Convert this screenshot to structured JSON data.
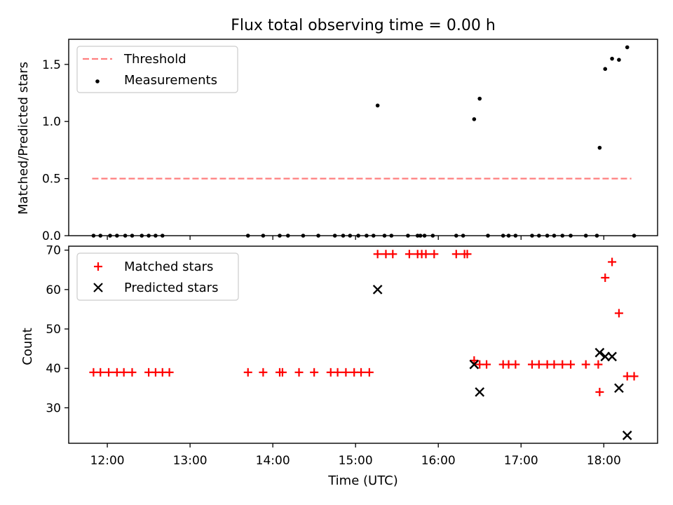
{
  "figure": {
    "title": "Flux total observing time = 0.00 h",
    "xlabel": "Time (UTC)",
    "x_ticks": [
      "12:00",
      "13:00",
      "14:00",
      "15:00",
      "16:00",
      "17:00",
      "18:00"
    ],
    "colors": {
      "threshold": "#ff7f7f",
      "measurements": "#000000",
      "matched": "#ff0000",
      "predicted": "#000000"
    }
  },
  "chart_data": [
    {
      "type": "scatter",
      "ylabel": "Matched/Predicted stars",
      "ylim": [
        0,
        1.72
      ],
      "xlim": [
        "11:32",
        "18:39"
      ],
      "y_ticks": [
        "0.0",
        "0.5",
        "1.0",
        "1.5"
      ],
      "grid": false,
      "legend_position": "top-left",
      "threshold": {
        "name": "Threshold",
        "y": 0.5,
        "x_range": [
          "11:49",
          "18:20"
        ],
        "style": "dashed"
      },
      "series": [
        {
          "name": "Measurements",
          "points": [
            [
              "11:50",
              0
            ],
            [
              "11:55",
              0
            ],
            [
              "12:02",
              0
            ],
            [
              "12:07",
              0
            ],
            [
              "12:13",
              0
            ],
            [
              "12:18",
              0
            ],
            [
              "12:25",
              0
            ],
            [
              "12:30",
              0
            ],
            [
              "12:35",
              0
            ],
            [
              "12:40",
              0
            ],
            [
              "13:42",
              0
            ],
            [
              "13:53",
              0
            ],
            [
              "14:05",
              0
            ],
            [
              "14:11",
              0
            ],
            [
              "14:22",
              0
            ],
            [
              "14:33",
              0
            ],
            [
              "14:45",
              0
            ],
            [
              "14:51",
              0
            ],
            [
              "14:56",
              0
            ],
            [
              "15:02",
              0
            ],
            [
              "15:08",
              0
            ],
            [
              "15:13",
              0
            ],
            [
              "15:16",
              1.14
            ],
            [
              "15:21",
              0
            ],
            [
              "15:26",
              0
            ],
            [
              "15:38",
              0
            ],
            [
              "15:45",
              0
            ],
            [
              "15:47",
              0
            ],
            [
              "15:50",
              0
            ],
            [
              "15:56",
              0
            ],
            [
              "16:13",
              0
            ],
            [
              "16:18",
              0
            ],
            [
              "16:26",
              1.02
            ],
            [
              "16:30",
              1.2
            ],
            [
              "16:36",
              0
            ],
            [
              "16:47",
              0
            ],
            [
              "16:51",
              0
            ],
            [
              "16:56",
              0
            ],
            [
              "17:08",
              0
            ],
            [
              "17:13",
              0
            ],
            [
              "17:19",
              0
            ],
            [
              "17:24",
              0
            ],
            [
              "17:30",
              0
            ],
            [
              "17:36",
              0
            ],
            [
              "17:47",
              0
            ],
            [
              "17:55",
              0
            ],
            [
              "17:57",
              0.77
            ],
            [
              "18:01",
              1.46
            ],
            [
              "18:06",
              1.55
            ],
            [
              "18:11",
              1.54
            ],
            [
              "18:17",
              1.65
            ],
            [
              "18:22",
              0
            ]
          ]
        }
      ]
    },
    {
      "type": "scatter",
      "ylabel": "Count",
      "ylim": [
        21,
        71
      ],
      "xlim": [
        "11:32",
        "18:39"
      ],
      "y_ticks": [
        "30",
        "40",
        "50",
        "60",
        "70"
      ],
      "grid": false,
      "legend_position": "top-left",
      "series": [
        {
          "name": "Matched stars",
          "marker": "plus",
          "points": [
            [
              "11:50",
              39
            ],
            [
              "11:55",
              39
            ],
            [
              "12:01",
              39
            ],
            [
              "12:07",
              39
            ],
            [
              "12:12",
              39
            ],
            [
              "12:18",
              39
            ],
            [
              "12:30",
              39
            ],
            [
              "12:35",
              39
            ],
            [
              "12:40",
              39
            ],
            [
              "12:45",
              39
            ],
            [
              "13:42",
              39
            ],
            [
              "13:53",
              39
            ],
            [
              "14:05",
              39
            ],
            [
              "14:07",
              39
            ],
            [
              "14:19",
              39
            ],
            [
              "14:30",
              39
            ],
            [
              "14:42",
              39
            ],
            [
              "14:47",
              39
            ],
            [
              "14:53",
              39
            ],
            [
              "14:59",
              39
            ],
            [
              "15:04",
              39
            ],
            [
              "15:10",
              39
            ],
            [
              "15:16",
              69
            ],
            [
              "15:22",
              69
            ],
            [
              "15:27",
              69
            ],
            [
              "15:39",
              69
            ],
            [
              "15:45",
              69
            ],
            [
              "15:48",
              69
            ],
            [
              "15:51",
              69
            ],
            [
              "15:57",
              69
            ],
            [
              "16:13",
              69
            ],
            [
              "16:19",
              69
            ],
            [
              "16:21",
              69
            ],
            [
              "16:26",
              42
            ],
            [
              "16:30",
              41
            ],
            [
              "16:35",
              41
            ],
            [
              "16:47",
              41
            ],
            [
              "16:51",
              41
            ],
            [
              "16:56",
              41
            ],
            [
              "17:08",
              41
            ],
            [
              "17:13",
              41
            ],
            [
              "17:19",
              41
            ],
            [
              "17:24",
              41
            ],
            [
              "17:30",
              41
            ],
            [
              "17:36",
              41
            ],
            [
              "17:47",
              41
            ],
            [
              "17:56",
              41
            ],
            [
              "17:57",
              34
            ],
            [
              "18:01",
              63
            ],
            [
              "18:06",
              67
            ],
            [
              "18:11",
              54
            ],
            [
              "18:17",
              38
            ],
            [
              "18:22",
              38
            ]
          ]
        },
        {
          "name": "Predicted stars",
          "marker": "x",
          "points": [
            [
              "15:16",
              60
            ],
            [
              "16:26",
              41
            ],
            [
              "16:30",
              34
            ],
            [
              "17:57",
              44
            ],
            [
              "18:01",
              43
            ],
            [
              "18:06",
              43
            ],
            [
              "18:11",
              35
            ],
            [
              "18:17",
              23
            ]
          ]
        }
      ]
    }
  ]
}
